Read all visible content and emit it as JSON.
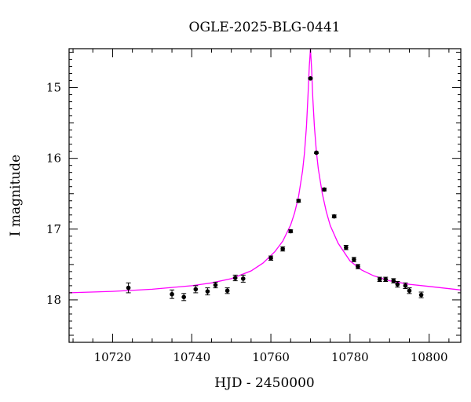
{
  "chart_data": {
    "type": "scatter",
    "title": "OGLE-2025-BLG-0441",
    "xlabel": "HJD - 2450000",
    "ylabel": "I magnitude",
    "xlim": [
      10709,
      10808
    ],
    "ylim": [
      18.6,
      14.45
    ],
    "y_inverted": true,
    "x_ticks": [
      10720,
      10740,
      10760,
      10780,
      10800
    ],
    "y_ticks": [
      15,
      16,
      17,
      18
    ],
    "grid": false,
    "colors": {
      "model": "#ff00ff",
      "points": "#000000"
    },
    "series": [
      {
        "kind": "points",
        "points": [
          {
            "x": 10724.0,
            "y": 17.83,
            "err": 0.07
          },
          {
            "x": 10735.0,
            "y": 17.92,
            "err": 0.06
          },
          {
            "x": 10738.0,
            "y": 17.96,
            "err": 0.05
          },
          {
            "x": 10741.0,
            "y": 17.85,
            "err": 0.05
          },
          {
            "x": 10744.0,
            "y": 17.88,
            "err": 0.05
          },
          {
            "x": 10746.0,
            "y": 17.79,
            "err": 0.04
          },
          {
            "x": 10749.0,
            "y": 17.87,
            "err": 0.04
          },
          {
            "x": 10751.0,
            "y": 17.69,
            "err": 0.04
          },
          {
            "x": 10753.0,
            "y": 17.7,
            "err": 0.05
          },
          {
            "x": 10760.0,
            "y": 17.41,
            "err": 0.03
          },
          {
            "x": 10763.0,
            "y": 17.28,
            "err": 0.03
          },
          {
            "x": 10765.0,
            "y": 17.03,
            "err": 0.02
          },
          {
            "x": 10767.0,
            "y": 16.6,
            "err": 0.02
          },
          {
            "x": 10770.0,
            "y": 14.87,
            "err": 0.01
          },
          {
            "x": 10771.5,
            "y": 15.92,
            "err": 0.01
          },
          {
            "x": 10773.5,
            "y": 16.44,
            "err": 0.02
          },
          {
            "x": 10776.0,
            "y": 16.82,
            "err": 0.02
          },
          {
            "x": 10779.0,
            "y": 17.26,
            "err": 0.03
          },
          {
            "x": 10781.0,
            "y": 17.43,
            "err": 0.03
          },
          {
            "x": 10782.0,
            "y": 17.53,
            "err": 0.03
          },
          {
            "x": 10787.5,
            "y": 17.71,
            "err": 0.03
          },
          {
            "x": 10789.0,
            "y": 17.71,
            "err": 0.03
          },
          {
            "x": 10791.0,
            "y": 17.73,
            "err": 0.03
          },
          {
            "x": 10792.0,
            "y": 17.78,
            "err": 0.04
          },
          {
            "x": 10794.0,
            "y": 17.8,
            "err": 0.04
          },
          {
            "x": 10795.0,
            "y": 17.87,
            "err": 0.04
          },
          {
            "x": 10798.0,
            "y": 17.93,
            "err": 0.04
          }
        ]
      },
      {
        "kind": "model",
        "model": {
          "x": [
            10709,
            10720,
            10730,
            10740,
            10745,
            10750,
            10755,
            10758,
            10761,
            10763,
            10765,
            10766,
            10767,
            10768,
            10768.5,
            10769,
            10769.4,
            10769.7,
            10770.0,
            10770.3,
            10770.6,
            10771.0,
            10771.5,
            10772,
            10773,
            10774,
            10775,
            10777,
            10780,
            10783,
            10786,
            10790,
            10795,
            10800,
            10808
          ],
          "y": [
            17.9,
            17.88,
            17.85,
            17.8,
            17.76,
            17.7,
            17.59,
            17.48,
            17.32,
            17.17,
            16.94,
            16.77,
            16.54,
            16.18,
            15.92,
            15.55,
            15.1,
            14.7,
            14.45,
            14.75,
            15.15,
            15.55,
            15.9,
            16.15,
            16.5,
            16.75,
            16.95,
            17.2,
            17.45,
            17.58,
            17.66,
            17.73,
            17.78,
            17.81,
            17.86
          ]
        }
      }
    ]
  }
}
